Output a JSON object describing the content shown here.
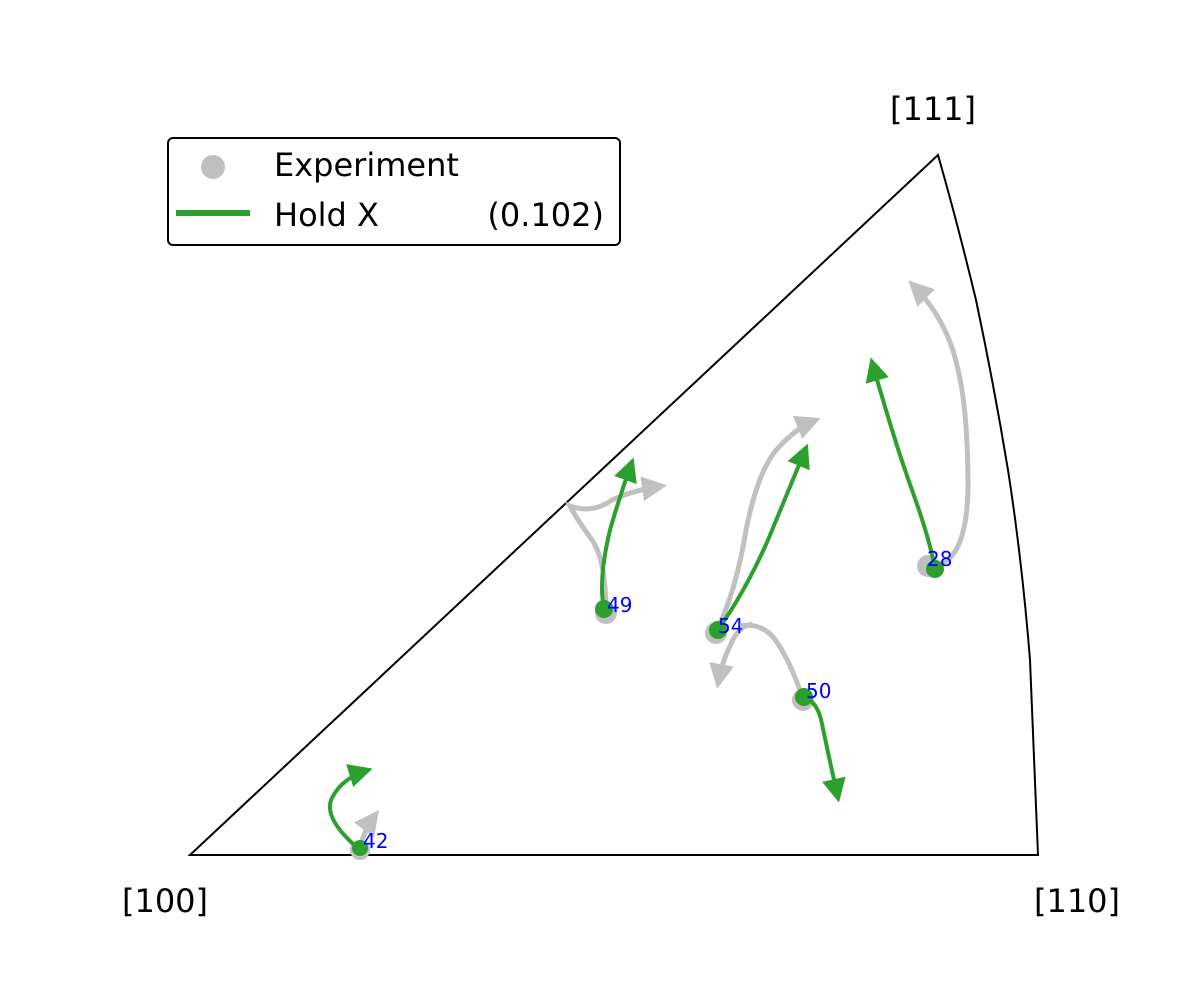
{
  "corners": {
    "origin": "[100]",
    "right": "[110]",
    "top": "[111]"
  },
  "legend": {
    "experiment_label": "Experiment",
    "model_label": "Hold X",
    "model_value": "(0.102)"
  },
  "colors": {
    "experiment": "#c0c0c0",
    "model": "#2ca02c",
    "grain_label": "#0000ff",
    "outline": "#000000"
  },
  "grains": [
    {
      "id": "42"
    },
    {
      "id": "49"
    },
    {
      "id": "54"
    },
    {
      "id": "50"
    },
    {
      "id": "28"
    }
  ]
}
